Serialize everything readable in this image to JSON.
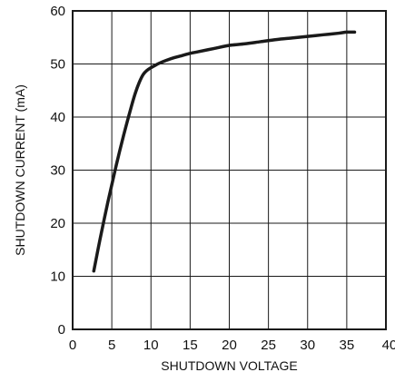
{
  "chart_data": {
    "type": "line",
    "xlabel": "SHUTDOWN VOLTAGE",
    "ylabel": "SHUTDOWN CURRENT (mA)",
    "xlim": [
      0,
      40
    ],
    "ylim": [
      0,
      60
    ],
    "x_ticks": [
      0,
      5,
      10,
      15,
      20,
      25,
      30,
      35,
      40
    ],
    "y_ticks": [
      0,
      10,
      20,
      30,
      40,
      50,
      60
    ],
    "grid": true,
    "line_color": "#1a1a1a",
    "series": [
      {
        "x": [
          2.7,
          3.5,
          4.5,
          5.5,
          6.5,
          7.5,
          8.0,
          8.5,
          9.0,
          9.5,
          10.0,
          10.5,
          11.0,
          12.0,
          13.0,
          14.0,
          15.0,
          16.0,
          18.0,
          20.0,
          22.0,
          24.0,
          26.0,
          28.0,
          30.0,
          32.0,
          34.0,
          35.0,
          36.0
        ],
        "y": [
          11,
          17,
          24,
          30.5,
          36.5,
          42,
          44.5,
          46.5,
          48,
          48.8,
          49.3,
          49.7,
          50.1,
          50.7,
          51.2,
          51.6,
          52.0,
          52.3,
          52.9,
          53.5,
          53.8,
          54.2,
          54.6,
          54.9,
          55.2,
          55.5,
          55.8,
          56.0,
          56.0
        ]
      }
    ]
  }
}
